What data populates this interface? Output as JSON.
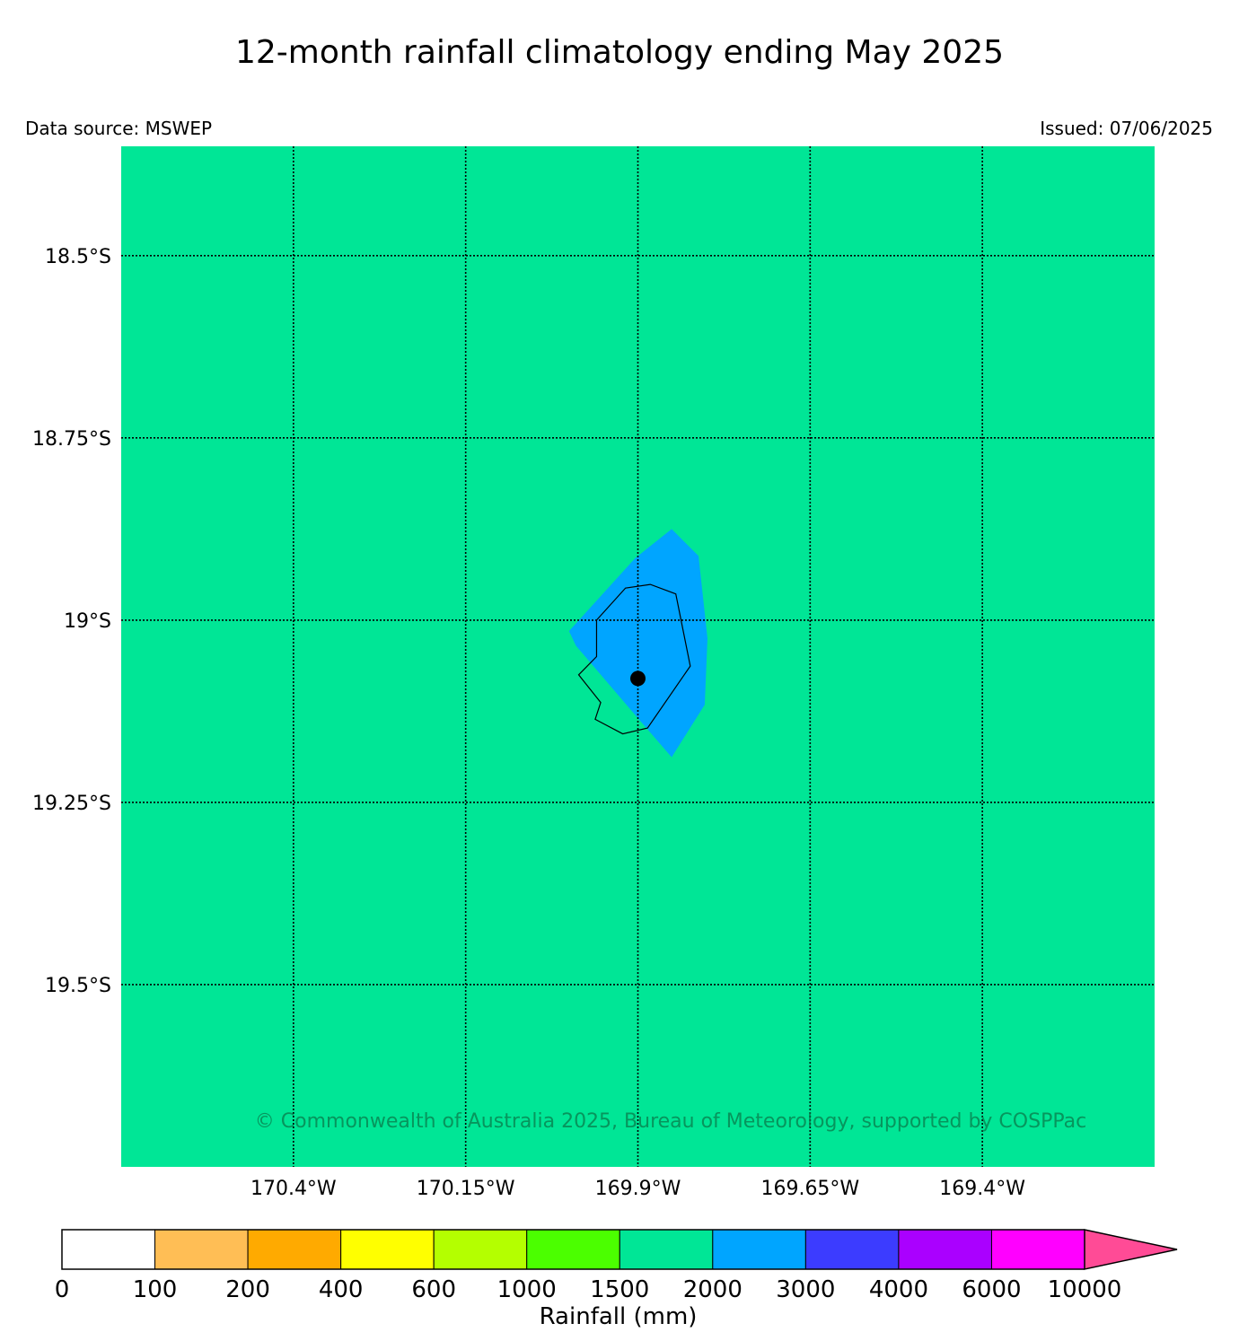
{
  "title": "12-month rainfall climatology ending May 2025",
  "data_source": "Data source: MSWEP",
  "issued": "Issued: 07/06/2025",
  "copyright": "© Commonwealth of Australia 2025, Bureau of Meteorology, supported by COSPPac",
  "map": {
    "background_color": "#00e696",
    "lon_range": [
      -170.65,
      -169.15
    ],
    "lat_range": [
      -18.35,
      -19.75
    ],
    "lon_ticks": [
      {
        "value": -170.4,
        "label": "170.4°W"
      },
      {
        "value": -170.15,
        "label": "170.15°W"
      },
      {
        "value": -169.9,
        "label": "169.9°W"
      },
      {
        "value": -169.65,
        "label": "169.65°W"
      },
      {
        "value": -169.4,
        "label": "169.4°W"
      }
    ],
    "lat_ticks": [
      {
        "value": -18.5,
        "label": "18.5°S"
      },
      {
        "value": -18.75,
        "label": "18.75°S"
      },
      {
        "value": -19.0,
        "label": "19°S"
      },
      {
        "value": -19.25,
        "label": "19.25°S"
      },
      {
        "value": -19.5,
        "label": "19.5°S"
      }
    ],
    "rain_region": {
      "category": "2000-3000",
      "color": "#00a5ff",
      "points": [
        [
          -170.0,
          -19.015
        ],
        [
          -169.904,
          -18.915
        ],
        [
          -169.851,
          -18.875
        ],
        [
          -169.812,
          -18.912
        ],
        [
          -169.799,
          -19.025
        ],
        [
          -169.803,
          -19.116
        ],
        [
          -169.851,
          -19.188
        ],
        [
          -169.895,
          -19.14
        ],
        [
          -169.99,
          -19.035
        ]
      ]
    },
    "island_outline": {
      "points": [
        [
          -169.96,
          -19.0
        ],
        [
          -169.918,
          -18.956
        ],
        [
          -169.882,
          -18.951
        ],
        [
          -169.845,
          -18.964
        ],
        [
          -169.824,
          -19.063
        ],
        [
          -169.886,
          -19.148
        ],
        [
          -169.922,
          -19.156
        ],
        [
          -169.962,
          -19.136
        ],
        [
          -169.954,
          -19.113
        ],
        [
          -169.986,
          -19.075
        ],
        [
          -169.96,
          -19.05
        ],
        [
          -169.96,
          -19.0
        ]
      ]
    },
    "station": {
      "lon": -169.9,
      "lat": -19.08
    }
  },
  "colorbar": {
    "label": "Rainfall (mm)",
    "ticks": [
      "0",
      "100",
      "200",
      "400",
      "600",
      "1000",
      "1500",
      "2000",
      "3000",
      "4000",
      "6000",
      "10000"
    ],
    "colors": [
      "#ffffff",
      "#ffbe55",
      "#ffaa00",
      "#ffff00",
      "#b4ff00",
      "#4bff00",
      "#00e696",
      "#00a5ff",
      "#3c3cff",
      "#aa00ff",
      "#ff00ff"
    ],
    "extend_color": "#ff4b96"
  }
}
